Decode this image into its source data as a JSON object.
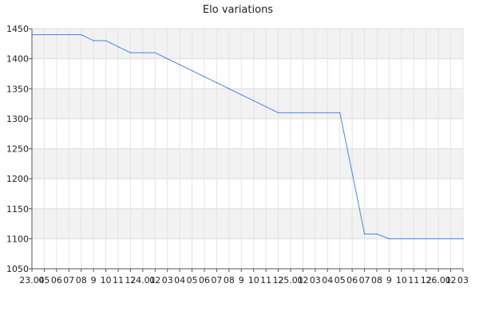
{
  "chart_data": {
    "type": "line",
    "title": "Elo variations",
    "xlabel": "",
    "ylabel": "",
    "ylim": [
      1050,
      1450
    ],
    "yticks": [
      1050,
      1100,
      1150,
      1200,
      1250,
      1300,
      1350,
      1400,
      1450
    ],
    "grid": true,
    "x_tick_labels": [
      "23.04",
      "05",
      "06",
      "07",
      "08",
      "9",
      "10",
      "11",
      "12",
      "24.01",
      "02",
      "03",
      "04",
      "05",
      "06",
      "07",
      "08",
      "9",
      "10",
      "11",
      "12",
      "25.01",
      "02",
      "03",
      "04",
      "05",
      "06",
      "07",
      "08",
      "9",
      "10",
      "11",
      "12",
      "26.01",
      "02",
      "03"
    ],
    "series": [
      {
        "color": "#4a86e8",
        "values": [
          1440,
          1440,
          1440,
          1440,
          1440,
          1430,
          1430,
          1420,
          1410,
          1410,
          1410,
          1400,
          1390,
          1380,
          1370,
          1360,
          1350,
          1340,
          1330,
          1320,
          1310,
          1310,
          1310,
          1310,
          1310,
          1310,
          1210,
          1108,
          1108,
          1100,
          1100,
          1100,
          1100,
          1100,
          1100,
          1100
        ]
      }
    ]
  }
}
